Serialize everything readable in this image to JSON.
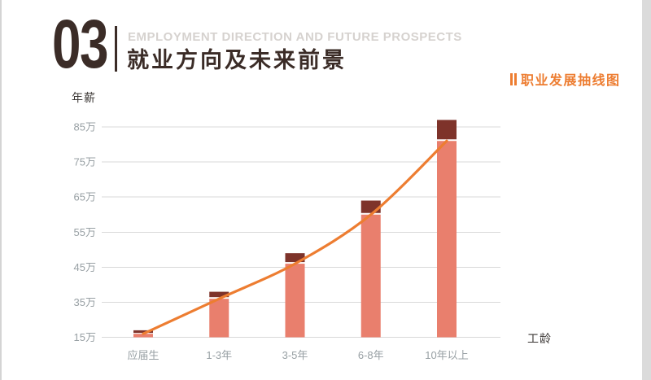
{
  "header": {
    "section_number": "03",
    "subtitle_en": "EMPLOYMENT DIRECTION AND FUTURE PROSPECTS",
    "title_zh": "就业方向及未来前景"
  },
  "chart_tag": {
    "label": "职业发展抽线图"
  },
  "colors": {
    "dark_brown": "#3b2c27",
    "subtitle_gray": "#d6d2cf",
    "orange": "#ed7d31",
    "bar_salmon": "#e97f6d",
    "bar_cap_dark": "#7e332a",
    "gridline": "#d9d9d9",
    "tick_gray": "#98a0a4",
    "axis_title": "#3c3836"
  },
  "chart_data": {
    "type": "bar",
    "title": "职业发展抽线图",
    "ylabel": "年薪",
    "xlabel": "工龄",
    "unit": "万",
    "grid": true,
    "legend_position": "none",
    "categories": [
      "应届生",
      "1-3年",
      "3-5年",
      "6-8年",
      "10年以上"
    ],
    "yticks": [
      {
        "label": "85万",
        "value": 85
      },
      {
        "label": "75万",
        "value": 75
      },
      {
        "label": "65万",
        "value": 65
      },
      {
        "label": "55万",
        "value": 55
      },
      {
        "label": "45万",
        "value": 45
      },
      {
        "label": "35万",
        "value": 35
      },
      {
        "label": "15万",
        "value": 15
      }
    ],
    "ylim": [
      15,
      87
    ],
    "series": [
      {
        "name": "bar_total_top_cap",
        "type": "bar-cap",
        "values": [
          19,
          38,
          49,
          64,
          87
        ]
      },
      {
        "name": "bar_main",
        "type": "bar",
        "values": [
          17,
          36,
          46,
          60,
          81
        ]
      },
      {
        "name": "trend_line",
        "type": "line",
        "values": [
          17,
          36,
          46,
          60,
          81
        ]
      }
    ]
  }
}
